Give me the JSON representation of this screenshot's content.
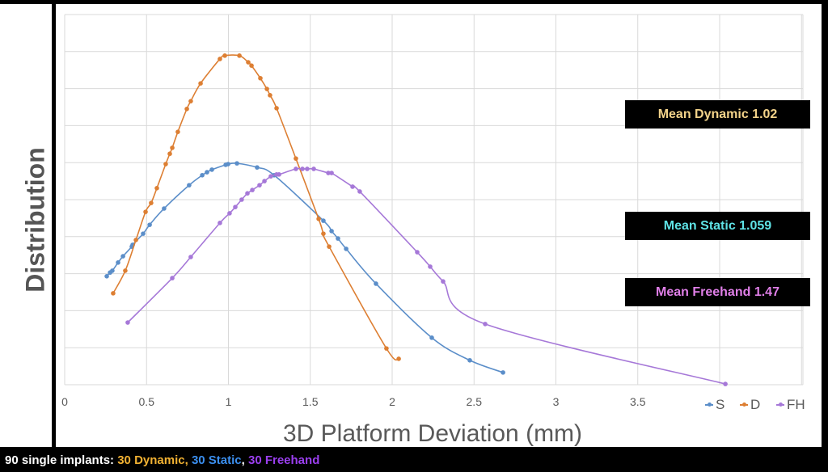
{
  "chart_data": {
    "type": "line",
    "title": "",
    "xlabel": "3D Platform Deviation (mm)",
    "ylabel": "Distribution",
    "xlim": [
      0,
      4.5
    ],
    "ylim": [
      0,
      10
    ],
    "xticks": [
      "0",
      "0.5",
      "1",
      "1.5",
      "2",
      "2.5",
      "3",
      "3.5"
    ],
    "xtick_values": [
      0,
      0.5,
      1,
      1.5,
      2,
      2.5,
      3,
      3.5
    ],
    "grid": true,
    "legend_position": "bottom-right",
    "series": [
      {
        "name": "S",
        "color": "#5b8ec9",
        "points": [
          [
            0.257,
            2.93
          ],
          [
            0.277,
            3.03
          ],
          [
            0.291,
            3.08
          ],
          [
            0.326,
            3.3
          ],
          [
            0.356,
            3.47
          ],
          [
            0.41,
            3.73
          ],
          [
            0.415,
            3.78
          ],
          [
            0.479,
            4.08
          ],
          [
            0.519,
            4.32
          ],
          [
            0.607,
            4.76
          ],
          [
            0.76,
            5.39
          ],
          [
            0.84,
            5.66
          ],
          [
            0.869,
            5.74
          ],
          [
            0.899,
            5.81
          ],
          [
            0.983,
            5.94
          ],
          [
            0.998,
            5.96
          ],
          [
            1.052,
            5.98
          ],
          [
            1.175,
            5.87
          ],
          [
            1.279,
            5.66
          ],
          [
            1.58,
            4.43
          ],
          [
            1.63,
            4.15
          ],
          [
            1.669,
            3.95
          ],
          [
            1.719,
            3.67
          ],
          [
            1.901,
            2.73
          ],
          [
            2.242,
            1.27
          ],
          [
            2.474,
            0.66
          ],
          [
            2.677,
            0.33
          ]
        ]
      },
      {
        "name": "D",
        "color": "#dd7f33",
        "points": [
          [
            0.296,
            2.47
          ],
          [
            0.37,
            3.08
          ],
          [
            0.435,
            3.91
          ],
          [
            0.494,
            4.67
          ],
          [
            0.528,
            4.91
          ],
          [
            0.563,
            5.31
          ],
          [
            0.617,
            5.96
          ],
          [
            0.642,
            6.24
          ],
          [
            0.657,
            6.4
          ],
          [
            0.691,
            6.83
          ],
          [
            0.746,
            7.45
          ],
          [
            0.77,
            7.66
          ],
          [
            0.83,
            8.14
          ],
          [
            0.948,
            8.8
          ],
          [
            0.978,
            8.89
          ],
          [
            1.067,
            8.89
          ],
          [
            1.121,
            8.71
          ],
          [
            1.141,
            8.62
          ],
          [
            1.195,
            8.28
          ],
          [
            1.235,
            7.99
          ],
          [
            1.254,
            7.82
          ],
          [
            1.294,
            7.47
          ],
          [
            1.412,
            6.11
          ],
          [
            1.551,
            4.48
          ],
          [
            1.58,
            4.08
          ],
          [
            1.615,
            3.73
          ],
          [
            1.965,
            0.98
          ],
          [
            2.04,
            0.7
          ]
        ]
      },
      {
        "name": "FH",
        "color": "#a678d8",
        "points": [
          [
            0.385,
            1.68
          ],
          [
            0.657,
            2.88
          ],
          [
            0.77,
            3.45
          ],
          [
            0.948,
            4.37
          ],
          [
            1.007,
            4.63
          ],
          [
            1.042,
            4.8
          ],
          [
            1.081,
            5.0
          ],
          [
            1.116,
            5.17
          ],
          [
            1.146,
            5.26
          ],
          [
            1.19,
            5.39
          ],
          [
            1.22,
            5.5
          ],
          [
            1.259,
            5.63
          ],
          [
            1.294,
            5.68
          ],
          [
            1.309,
            5.68
          ],
          [
            1.412,
            5.83
          ],
          [
            1.452,
            5.83
          ],
          [
            1.481,
            5.83
          ],
          [
            1.521,
            5.83
          ],
          [
            1.61,
            5.72
          ],
          [
            1.63,
            5.72
          ],
          [
            1.758,
            5.35
          ],
          [
            1.802,
            5.22
          ],
          [
            2.153,
            3.58
          ],
          [
            2.232,
            3.19
          ],
          [
            2.311,
            2.79
          ],
          [
            2.568,
            1.64
          ],
          [
            4.035,
            0.02
          ]
        ]
      }
    ],
    "annotations": [
      {
        "text": "Mean Dynamic 1.02",
        "color": "#f3d38a"
      },
      {
        "text": "Mean Static 1.059",
        "color": "#5fe3e6"
      },
      {
        "text": "Mean Freehand 1.47",
        "color": "#e07fe8"
      }
    ]
  },
  "footer": {
    "prefix": "90 single implants: ",
    "dynamic": "30 Dynamic,",
    "static": "30 Static",
    "comma": ",",
    "freehand": "30 Freehand",
    "colors": {
      "dynamic": "#f2b233",
      "static": "#3b8ff0",
      "freehand": "#9b3ff0"
    }
  }
}
